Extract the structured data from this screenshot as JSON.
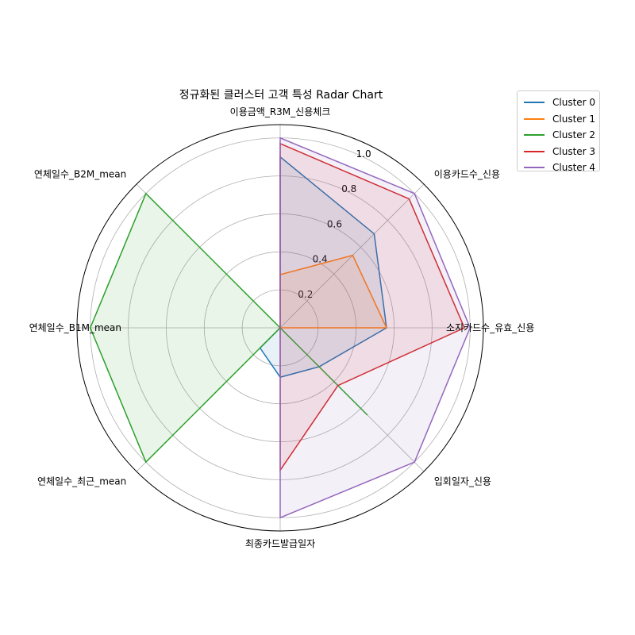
{
  "chart_data": {
    "type": "radar",
    "title": "정규화된 클러스터 고객 특성 Radar Chart",
    "axes": [
      "이용금액_R3M_신용체크",
      "이용카드수_신용",
      "소지카드수_유효_신용",
      "입회일자_신용",
      "최종카드발급일자",
      "연체일수_최근_mean",
      "연체일수_B1M_mean",
      "연체일수_B2M_mean"
    ],
    "r_ticks": [
      "0.2",
      "0.4",
      "0.6",
      "0.8",
      "1.0"
    ],
    "r_lim": [
      0,
      1.07
    ],
    "grid": true,
    "legend_position": "upper-right outside",
    "series": [
      {
        "name": "Cluster 0",
        "color": "#1f77b4",
        "values": [
          0.9,
          0.7,
          0.56,
          0.29,
          0.26,
          0.15,
          0,
          0
        ]
      },
      {
        "name": "Cluster 1",
        "color": "#ff7f0e",
        "values": [
          0.28,
          0.54,
          0.56,
          0,
          0,
          0,
          0,
          0
        ]
      },
      {
        "name": "Cluster 2",
        "color": "#2ca02c",
        "values": [
          0,
          0,
          0,
          0.65,
          0,
          1.0,
          1.0,
          1.0
        ]
      },
      {
        "name": "Cluster 3",
        "color": "#d62728",
        "values": [
          0.97,
          0.96,
          0.97,
          0.43,
          0.75,
          0,
          0,
          0
        ]
      },
      {
        "name": "Cluster 4",
        "color": "#9467bd",
        "values": [
          1.0,
          1.0,
          1.0,
          1.0,
          1.0,
          0,
          0,
          0
        ]
      }
    ]
  }
}
